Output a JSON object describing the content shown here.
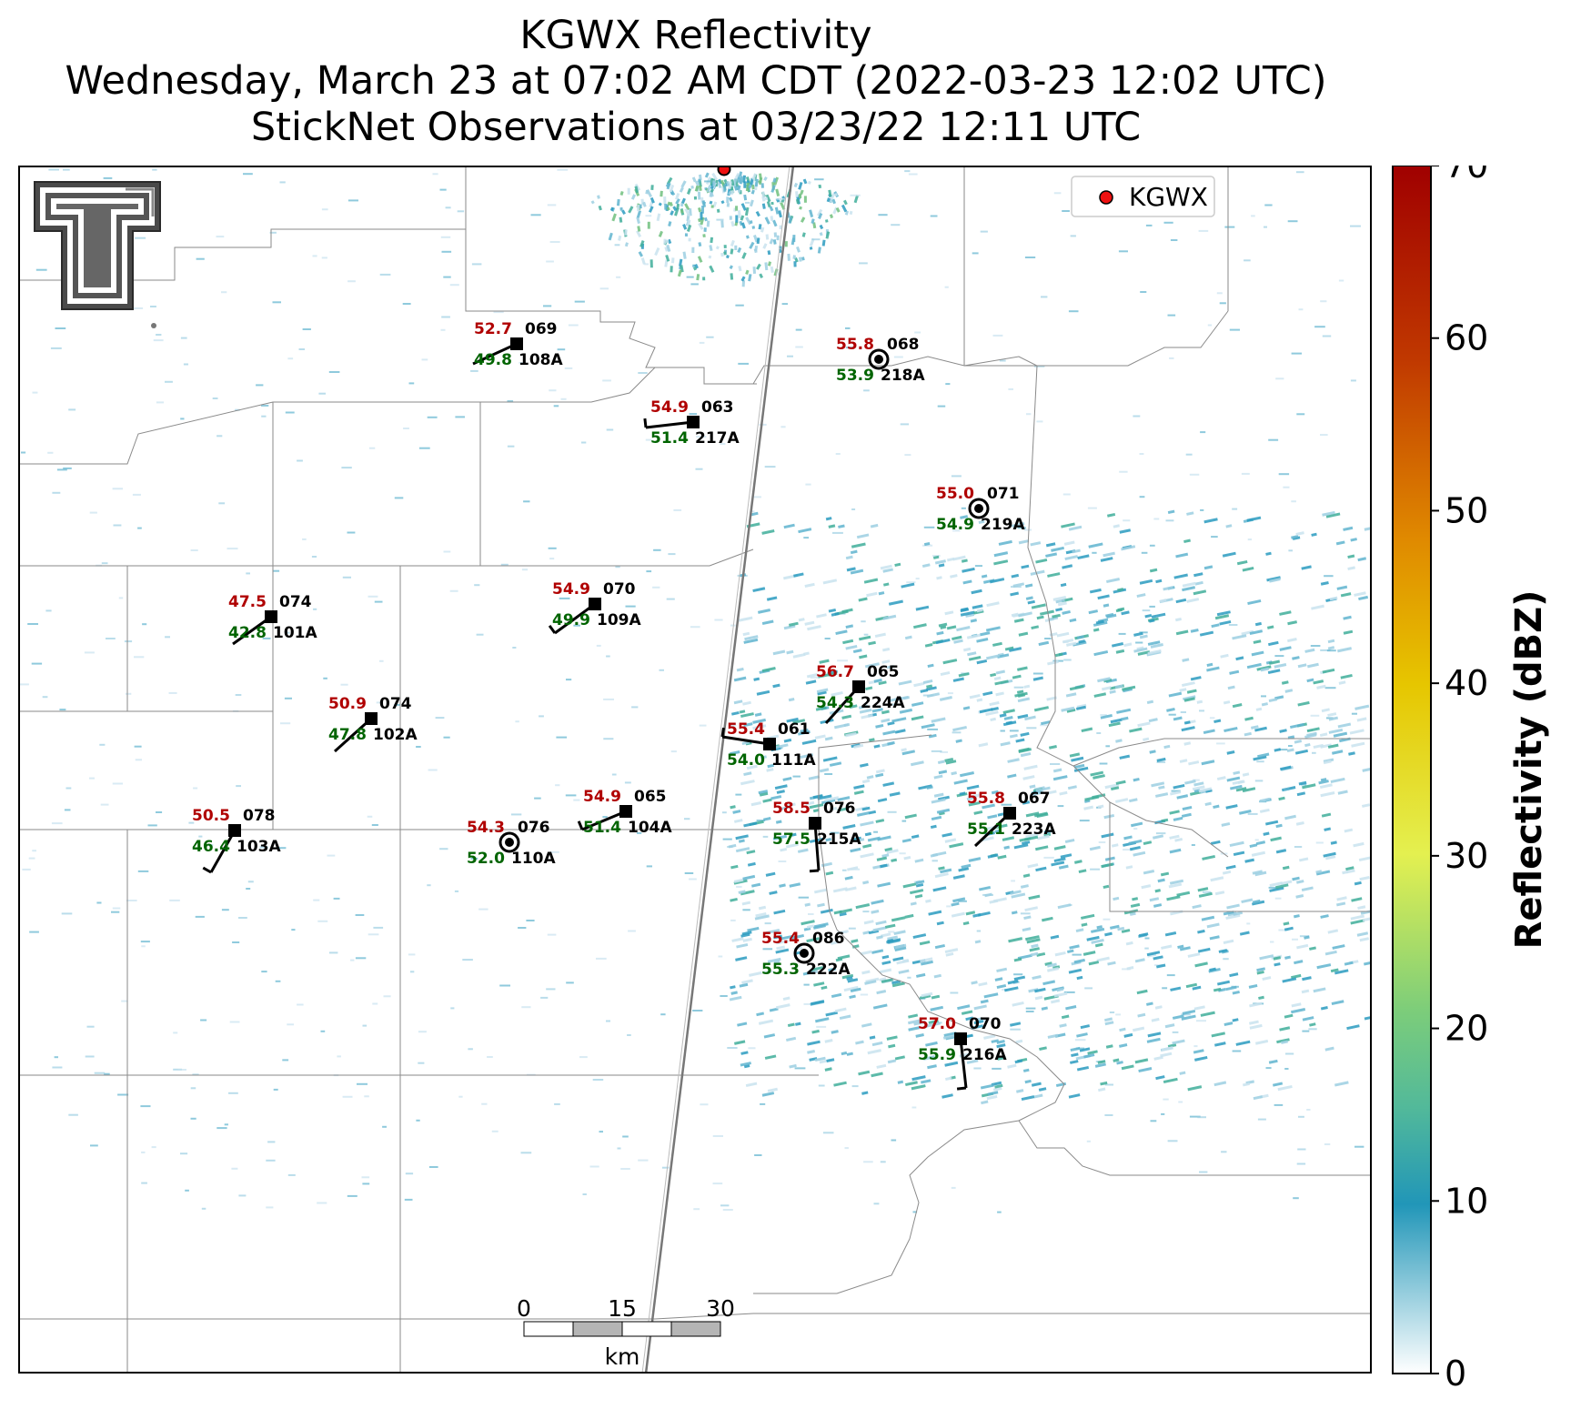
{
  "title": {
    "line1": "KGWX Reflectivity",
    "line2": "Wednesday, March 23 at 07:02 AM CDT (2022-03-23 12:02 UTC)",
    "line3": "StickNet Observations at 03/23/22 12:11 UTC"
  },
  "legend": {
    "label": "KGWX",
    "marker_color": "#ee1111"
  },
  "colorbar": {
    "label": "Reflectivity (dBZ)",
    "ticks": [
      "0",
      "10",
      "20",
      "30",
      "40",
      "50",
      "60",
      "70"
    ],
    "range": [
      0,
      70
    ],
    "colors": [
      "#ffffff",
      "#2196b8",
      "#52b99a",
      "#7ccd7a",
      "#e4f050",
      "#e6c600",
      "#e08a00",
      "#c03800",
      "#a00000"
    ]
  },
  "scale_bar": {
    "ticks": [
      "0",
      "15",
      "30"
    ],
    "unit": "km"
  },
  "stations": [
    {
      "id": "108A",
      "temp": "52.7",
      "dew": "49.8",
      "pres": "069"
    },
    {
      "id": "218A",
      "temp": "55.8",
      "dew": "53.9",
      "pres": "068"
    },
    {
      "id": "217A",
      "temp": "54.9",
      "dew": "51.4",
      "pres": "063"
    },
    {
      "id": "219A",
      "temp": "55.0",
      "dew": "54.9",
      "pres": "071"
    },
    {
      "id": "101A",
      "temp": "47.5",
      "dew": "42.8",
      "pres": "074"
    },
    {
      "id": "109A",
      "temp": "54.9",
      "dew": "49.9",
      "pres": "070"
    },
    {
      "id": "224A",
      "temp": "56.7",
      "dew": "54.3",
      "pres": "065"
    },
    {
      "id": "102A",
      "temp": "50.9",
      "dew": "47.8",
      "pres": "074"
    },
    {
      "id": "111A",
      "temp": "55.4",
      "dew": "54.0",
      "pres": "061"
    },
    {
      "id": "103A",
      "temp": "50.5",
      "dew": "46.4",
      "pres": "078"
    },
    {
      "id": "110A",
      "temp": "54.3",
      "dew": "52.0",
      "pres": "076"
    },
    {
      "id": "104A",
      "temp": "54.9",
      "dew": "51.4",
      "pres": "065"
    },
    {
      "id": "215A",
      "temp": "58.5",
      "dew": "57.5",
      "pres": "076"
    },
    {
      "id": "223A",
      "temp": "55.8",
      "dew": "55.1",
      "pres": "067"
    },
    {
      "id": "222A",
      "temp": "55.4",
      "dew": "55.3",
      "pres": "086"
    },
    {
      "id": "216A",
      "temp": "57.0",
      "dew": "55.9",
      "pres": "070"
    }
  ]
}
